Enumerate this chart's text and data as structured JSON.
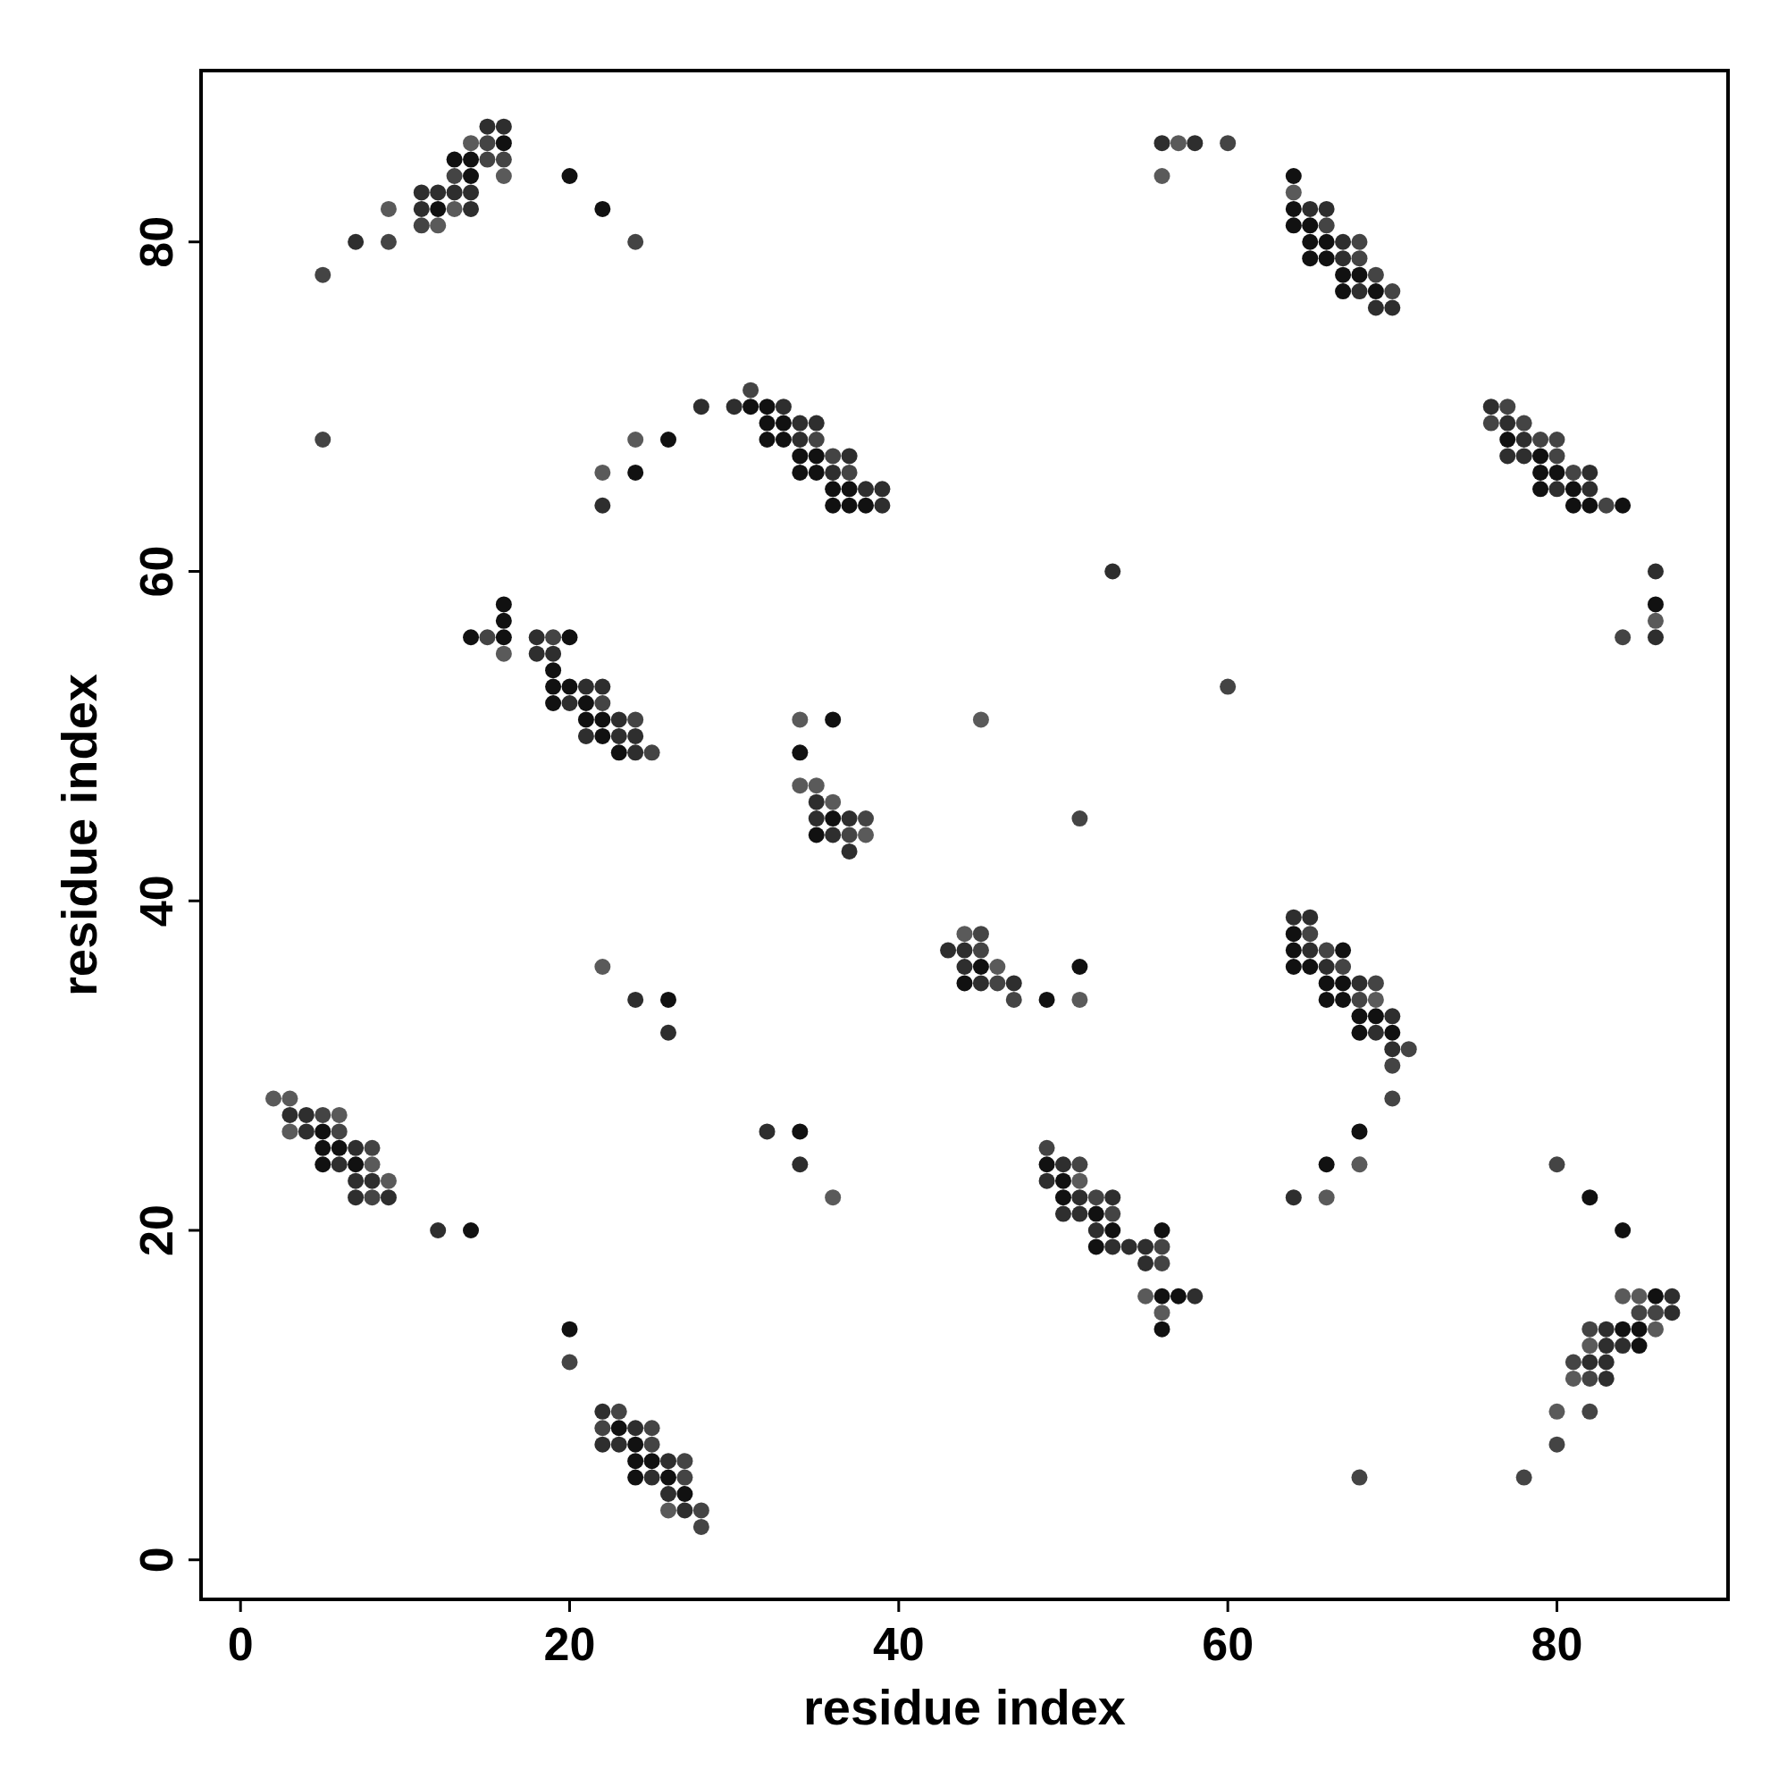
{
  "chart_data": {
    "type": "scatter",
    "xlabel": "residue index",
    "ylabel": "residue index",
    "xlim": [
      -2.4,
      90.4
    ],
    "ylim": [
      -2.4,
      90.4
    ],
    "xticks": [
      0,
      20,
      40,
      60,
      80
    ],
    "yticks": [
      0,
      20,
      40,
      60,
      80
    ],
    "grid": false,
    "marker": "circle",
    "series": [
      {
        "x": [
          2,
          3,
          3,
          4,
          5,
          6,
          3,
          4,
          5,
          6,
          5,
          6,
          7,
          8,
          5,
          6,
          7,
          8,
          7,
          8,
          9,
          7,
          8,
          9,
          12,
          14,
          20,
          20,
          22,
          23,
          22,
          23,
          24,
          25,
          22,
          23,
          24,
          25,
          24,
          25,
          26,
          27,
          24,
          25,
          26,
          27,
          26,
          27,
          26,
          27,
          28,
          28,
          32,
          34,
          34,
          36,
          22,
          24,
          26,
          26,
          44,
          45,
          43,
          44,
          45,
          44,
          45,
          46,
          44,
          45,
          46,
          47,
          47,
          49,
          51,
          51,
          49,
          49,
          50,
          51,
          49,
          50,
          51,
          50,
          51,
          52,
          53,
          50,
          51,
          52,
          53,
          52,
          53,
          56,
          52,
          53,
          54,
          55,
          56,
          55,
          56,
          55,
          56,
          57,
          58,
          56,
          56,
          64,
          65,
          64,
          65,
          64,
          65,
          66,
          67,
          64,
          65,
          66,
          67,
          66,
          67,
          68,
          69,
          66,
          67,
          68,
          69,
          68,
          69,
          70,
          68,
          69,
          70,
          70,
          71,
          70,
          70,
          68,
          68,
          66,
          66,
          64,
          68,
          78,
          80,
          82,
          84,
          84,
          85,
          86,
          87,
          85,
          86,
          87,
          82,
          83,
          84,
          85,
          86,
          82,
          83,
          84,
          85,
          81,
          82,
          83,
          81,
          82,
          83,
          80,
          82,
          80,
          34,
          36,
          34,
          45,
          51,
          53,
          60,
          34,
          35,
          35,
          36,
          35,
          36,
          37,
          38,
          35,
          36,
          37,
          38,
          37,
          16,
          16,
          14,
          15,
          16,
          18,
          19,
          20,
          16,
          18,
          19,
          19,
          19,
          20,
          21,
          22,
          19,
          20,
          21,
          22,
          21,
          22,
          23,
          24,
          21,
          22,
          23,
          24,
          23,
          24,
          25,
          5,
          22,
          22,
          24,
          24,
          26,
          28,
          31,
          30,
          31,
          32,
          33,
          32,
          33,
          34,
          35,
          32,
          33,
          34,
          35,
          34,
          35,
          36,
          37,
          34,
          35,
          36,
          37,
          36,
          37,
          38,
          39,
          36,
          37,
          38,
          39,
          5,
          7,
          9,
          9,
          15,
          16,
          14,
          15,
          16,
          13,
          14,
          15,
          16,
          13,
          14,
          16,
          11,
          12,
          13,
          14,
          11,
          12,
          13,
          14,
          11,
          12,
          20,
          22,
          24,
          56,
          57,
          58,
          60,
          56,
          64,
          64,
          64,
          65,
          66,
          64,
          65,
          66,
          65,
          66,
          67,
          68,
          65,
          66,
          67,
          68,
          67,
          68,
          69,
          67,
          68,
          69,
          70,
          69,
          70,
          76,
          77,
          76,
          77,
          78,
          77,
          78,
          79,
          80,
          77,
          78,
          79,
          80,
          79,
          80,
          81,
          82,
          79,
          80,
          81,
          82,
          81,
          82,
          83,
          84,
          86,
          86,
          86,
          86,
          84
        ],
        "values": [
          28,
          28,
          27,
          27,
          27,
          27,
          26,
          26,
          26,
          26,
          25,
          25,
          25,
          25,
          24,
          24,
          24,
          24,
          23,
          23,
          23,
          22,
          22,
          22,
          20,
          20,
          14,
          12,
          9,
          9,
          8,
          8,
          8,
          8,
          7,
          7,
          7,
          7,
          6,
          6,
          6,
          6,
          5,
          5,
          5,
          5,
          4,
          4,
          3,
          3,
          3,
          2,
          26,
          26,
          24,
          22,
          36,
          34,
          34,
          32,
          38,
          38,
          37,
          37,
          37,
          36,
          36,
          36,
          35,
          35,
          35,
          35,
          34,
          34,
          36,
          34,
          25,
          24,
          24,
          24,
          23,
          23,
          23,
          22,
          22,
          22,
          22,
          21,
          21,
          21,
          21,
          20,
          20,
          20,
          19,
          19,
          19,
          19,
          19,
          18,
          18,
          16,
          16,
          16,
          16,
          15,
          14,
          39,
          39,
          38,
          38,
          37,
          37,
          37,
          37,
          36,
          36,
          36,
          36,
          35,
          35,
          35,
          35,
          34,
          34,
          34,
          34,
          33,
          33,
          33,
          32,
          32,
          32,
          31,
          31,
          30,
          28,
          26,
          24,
          24,
          22,
          22,
          5,
          5,
          24,
          22,
          20,
          16,
          16,
          16,
          16,
          15,
          15,
          15,
          14,
          14,
          14,
          14,
          14,
          13,
          13,
          13,
          13,
          12,
          12,
          12,
          11,
          11,
          11,
          9,
          9,
          7,
          51,
          51,
          49,
          51,
          45,
          60,
          53,
          47,
          47,
          46,
          46,
          45,
          45,
          45,
          45,
          44,
          44,
          44,
          44,
          43,
          58,
          57,
          56,
          56,
          56,
          56,
          56,
          56,
          55,
          55,
          55,
          54,
          53,
          53,
          53,
          53,
          52,
          52,
          52,
          52,
          51,
          51,
          51,
          51,
          50,
          50,
          50,
          50,
          49,
          49,
          49,
          68,
          66,
          64,
          68,
          66,
          68,
          70,
          71,
          70,
          70,
          70,
          70,
          69,
          69,
          69,
          69,
          68,
          68,
          68,
          68,
          67,
          67,
          67,
          67,
          66,
          66,
          66,
          66,
          65,
          65,
          65,
          65,
          64,
          64,
          64,
          64,
          78,
          80,
          80,
          82,
          87,
          87,
          86,
          86,
          86,
          85,
          85,
          85,
          85,
          84,
          84,
          84,
          83,
          83,
          83,
          83,
          82,
          82,
          82,
          82,
          81,
          81,
          84,
          82,
          80,
          86,
          86,
          86,
          86,
          84,
          84,
          83,
          82,
          82,
          82,
          81,
          81,
          81,
          80,
          80,
          80,
          80,
          79,
          79,
          79,
          79,
          78,
          78,
          78,
          77,
          77,
          77,
          77,
          76,
          76,
          70,
          70,
          69,
          69,
          69,
          68,
          68,
          68,
          68,
          67,
          67,
          67,
          67,
          66,
          66,
          66,
          66,
          65,
          65,
          65,
          65,
          64,
          64,
          64,
          64,
          60,
          58,
          57,
          56,
          56
        ],
        "colors": [
          "#5a5a5a",
          "#5a5a5a",
          "#2e2e2e",
          "#2e2e2e",
          "#444444",
          "#5a5a5a",
          "#5a5a5a",
          "#2e2e2e",
          "#111111",
          "#444444",
          "#111111",
          "#111111",
          "#2e2e2e",
          "#444444",
          "#111111",
          "#2e2e2e",
          "#111111",
          "#5a5a5a",
          "#2e2e2e",
          "#2e2e2e",
          "#5a5a5a",
          "#2e2e2e",
          "#444444",
          "#2e2e2e",
          "#2e2e2e",
          "#111111",
          "#111111",
          "#444444",
          "#2e2e2e",
          "#444444",
          "#444444",
          "#111111",
          "#2e2e2e",
          "#444444",
          "#2e2e2e",
          "#2e2e2e",
          "#111111",
          "#444444",
          "#111111",
          "#111111",
          "#2e2e2e",
          "#444444",
          "#111111",
          "#2e2e2e",
          "#111111",
          "#444444",
          "#2e2e2e",
          "#111111",
          "#5a5a5a",
          "#2e2e2e",
          "#444444",
          "#444444",
          "#2e2e2e",
          "#111111",
          "#2e2e2e",
          "#5a5a5a",
          "#5a5a5a",
          "#2e2e2e",
          "#111111",
          "#2e2e2e",
          "#5a5a5a",
          "#444444",
          "#2e2e2e",
          "#2e2e2e",
          "#444444",
          "#2e2e2e",
          "#111111",
          "#5a5a5a",
          "#111111",
          "#2e2e2e",
          "#444444",
          "#2e2e2e",
          "#444444",
          "#111111",
          "#111111",
          "#5a5a5a",
          "#444444",
          "#111111",
          "#2e2e2e",
          "#444444",
          "#2e2e2e",
          "#111111",
          "#5a5a5a",
          "#111111",
          "#2e2e2e",
          "#444444",
          "#2e2e2e",
          "#2e2e2e",
          "#2e2e2e",
          "#111111",
          "#444444",
          "#2e2e2e",
          "#111111",
          "#111111",
          "#111111",
          "#2e2e2e",
          "#2e2e2e",
          "#2e2e2e",
          "#444444",
          "#2e2e2e",
          "#444444",
          "#5a5a5a",
          "#111111",
          "#111111",
          "#2e2e2e",
          "#5a5a5a",
          "#111111",
          "#2e2e2e",
          "#2e2e2e",
          "#111111",
          "#444444",
          "#111111",
          "#2e2e2e",
          "#444444",
          "#111111",
          "#111111",
          "#111111",
          "#2e2e2e",
          "#444444",
          "#111111",
          "#111111",
          "#2e2e2e",
          "#444444",
          "#111111",
          "#111111",
          "#444444",
          "#5a5a5a",
          "#111111",
          "#111111",
          "#2e2e2e",
          "#111111",
          "#2e2e2e",
          "#111111",
          "#2e2e2e",
          "#444444",
          "#444444",
          "#444444",
          "#111111",
          "#5a5a5a",
          "#111111",
          "#5a5a5a",
          "#2e2e2e",
          "#444444",
          "#444444",
          "#444444",
          "#111111",
          "#111111",
          "#5a5a5a",
          "#5a5a5a",
          "#111111",
          "#2e2e2e",
          "#444444",
          "#444444",
          "#2e2e2e",
          "#444444",
          "#2e2e2e",
          "#111111",
          "#111111",
          "#5a5a5a",
          "#5a5a5a",
          "#2e2e2e",
          "#2e2e2e",
          "#111111",
          "#444444",
          "#2e2e2e",
          "#2e2e2e",
          "#5a5a5a",
          "#444444",
          "#2e2e2e",
          "#5a5a5a",
          "#444444",
          "#444444",
          "#5a5a5a",
          "#111111",
          "#111111",
          "#5a5a5a",
          "#444444",
          "#2e2e2e",
          "#444444",
          "#5a5a5a",
          "#5a5a5a",
          "#2e2e2e",
          "#5a5a5a",
          "#2e2e2e",
          "#111111",
          "#2e2e2e",
          "#444444",
          "#111111",
          "#2e2e2e",
          "#444444",
          "#5a5a5a",
          "#2e2e2e",
          "#111111",
          "#111111",
          "#111111",
          "#444444",
          "#111111",
          "#2e2e2e",
          "#444444",
          "#111111",
          "#5a5a5a",
          "#2e2e2e",
          "#2e2e2e",
          "#111111",
          "#111111",
          "#111111",
          "#2e2e2e",
          "#2e2e2e",
          "#111111",
          "#2e2e2e",
          "#111111",
          "#444444",
          "#111111",
          "#111111",
          "#2e2e2e",
          "#444444",
          "#2e2e2e",
          "#111111",
          "#2e2e2e",
          "#2e2e2e",
          "#111111",
          "#2e2e2e",
          "#444444",
          "#444444",
          "#5a5a5a",
          "#2e2e2e",
          "#5a5a5a",
          "#111111",
          "#111111",
          "#2e2e2e",
          "#444444",
          "#2e2e2e",
          "#111111",
          "#111111",
          "#2e2e2e",
          "#111111",
          "#111111",
          "#2e2e2e",
          "#2e2e2e",
          "#111111",
          "#111111",
          "#2e2e2e",
          "#444444",
          "#111111",
          "#111111",
          "#444444",
          "#2e2e2e",
          "#111111",
          "#111111",
          "#2e2e2e",
          "#444444",
          "#111111",
          "#111111",
          "#2e2e2e",
          "#2e2e2e",
          "#111111",
          "#111111",
          "#111111",
          "#2e2e2e",
          "#444444",
          "#2e2e2e",
          "#444444",
          "#5a5a5a",
          "#2e2e2e",
          "#2e2e2e",
          "#5a5a5a",
          "#444444",
          "#111111",
          "#111111",
          "#111111",
          "#444444",
          "#444444",
          "#444444",
          "#111111",
          "#5a5a5a",
          "#2e2e2e",
          "#2e2e2e",
          "#2e2e2e",
          "#2e2e2e",
          "#2e2e2e",
          "#111111",
          "#5a5a5a",
          "#2e2e2e",
          "#444444",
          "#5a5a5a",
          "#111111",
          "#111111",
          "#444444",
          "#2e2e2e",
          "#5a5a5a",
          "#2e2e2e",
          "#444444",
          "#5a5a5a",
          "#111111",
          "#5a5a5a",
          "#111111",
          "#2e2e2e",
          "#2e2e2e",
          "#111111",
          "#111111",
          "#444444",
          "#111111",
          "#111111",
          "#2e2e2e",
          "#444444",
          "#111111",
          "#111111",
          "#2e2e2e",
          "#444444",
          "#111111",
          "#111111",
          "#444444",
          "#111111",
          "#2e2e2e",
          "#111111",
          "#444444",
          "#2e2e2e",
          "#2e2e2e",
          "#2e2e2e",
          "#444444",
          "#444444",
          "#2e2e2e",
          "#444444",
          "#111111",
          "#2e2e2e",
          "#444444",
          "#444444",
          "#2e2e2e",
          "#2e2e2e",
          "#111111",
          "#444444",
          "#111111",
          "#111111",
          "#444444",
          "#2e2e2e",
          "#111111",
          "#2e2e2e",
          "#111111",
          "#2e2e2e",
          "#111111",
          "#111111",
          "#444444",
          "#111111",
          "#2e2e2e",
          "#111111",
          "#5a5a5a",
          "#2e2e2e",
          "#444444"
        ]
      }
    ]
  }
}
